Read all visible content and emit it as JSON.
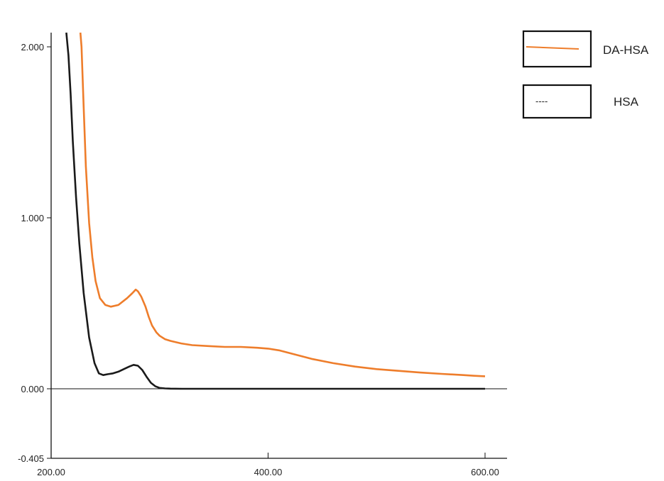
{
  "chart_data": {
    "type": "line",
    "x_range": [
      200,
      620
    ],
    "ylim": [
      -0.405,
      2.1
    ],
    "x_ticks": [
      "200.00",
      "400.00",
      "600.00"
    ],
    "y_ticks": [
      "2.000",
      "1.000",
      "0.000",
      "-0.405"
    ],
    "y_tick_values": [
      2.0,
      1.0,
      0.0,
      -0.405
    ],
    "x_tick_values": [
      200,
      400,
      600
    ],
    "legend_placement": "top-right",
    "series": [
      {
        "name": "DA-HSA",
        "color": "#ee7d2b",
        "legend_sample": "line",
        "x": [
          227,
          228,
          230,
          232,
          235,
          238,
          241,
          245,
          250,
          255,
          262,
          270,
          275,
          278,
          280,
          283,
          287,
          290,
          293,
          297,
          300,
          305,
          310,
          320,
          330,
          345,
          360,
          375,
          390,
          400,
          410,
          425,
          440,
          460,
          480,
          500,
          520,
          540,
          560,
          580,
          590,
          600
        ],
        "y": [
          2.1,
          2.0,
          1.65,
          1.3,
          0.97,
          0.77,
          0.63,
          0.53,
          0.49,
          0.48,
          0.49,
          0.53,
          0.56,
          0.58,
          0.57,
          0.54,
          0.48,
          0.42,
          0.37,
          0.33,
          0.31,
          0.29,
          0.28,
          0.265,
          0.255,
          0.25,
          0.245,
          0.245,
          0.24,
          0.235,
          0.225,
          0.2,
          0.175,
          0.15,
          0.13,
          0.115,
          0.105,
          0.095,
          0.087,
          0.08,
          0.076,
          0.073
        ]
      },
      {
        "name": "HSA",
        "color": "#1a1a1a",
        "legend_sample": "----",
        "x": [
          214,
          216,
          218,
          220,
          223,
          226,
          230,
          235,
          240,
          244,
          248,
          252,
          257,
          262,
          267,
          272,
          276,
          280,
          284,
          288,
          292,
          296,
          300,
          305,
          310,
          320,
          340,
          400,
          500,
          600
        ],
        "y": [
          2.1,
          1.95,
          1.72,
          1.45,
          1.12,
          0.85,
          0.56,
          0.3,
          0.15,
          0.09,
          0.08,
          0.085,
          0.09,
          0.1,
          0.115,
          0.13,
          0.14,
          0.135,
          0.11,
          0.07,
          0.035,
          0.015,
          0.005,
          0.002,
          0.001,
          0.0,
          0.0,
          0.0,
          0.0,
          0.0
        ]
      }
    ]
  }
}
